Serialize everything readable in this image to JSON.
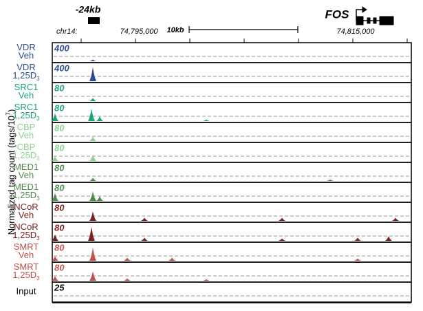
{
  "header": {
    "enhancer": "-24kb",
    "gene": "FOS",
    "chrom": "chr14:",
    "coord_left": "74,795,000",
    "scale_bar": "10kb",
    "coord_right": "74,815,000"
  },
  "y_label": {
    "prefix": "Normalized tag count (tags/10",
    "sup": "7",
    "suffix": ")"
  },
  "tracks": [
    {
      "factor": "VDR",
      "condition": "Veh",
      "scale": "400",
      "color": "#2d4b8e"
    },
    {
      "factor": "VDR",
      "condition": "1,25D",
      "sub": "3",
      "scale": "400",
      "color": "#2d4b8e"
    },
    {
      "factor": "SRC1",
      "condition": "Veh",
      "scale": "80",
      "color": "#1ba37a"
    },
    {
      "factor": "SRC1",
      "condition": "1,25D",
      "sub": "3",
      "scale": "80",
      "color": "#1ba37a"
    },
    {
      "factor": "CBP",
      "condition": "Veh",
      "scale": "80",
      "color": "#8fd08f"
    },
    {
      "factor": "CBP",
      "condition": "1,25D",
      "sub": "3",
      "scale": "80",
      "color": "#8fd08f"
    },
    {
      "factor": "MED1",
      "condition": "Veh",
      "scale": "80",
      "color": "#4f8a4f"
    },
    {
      "factor": "MED1",
      "condition": "1,25D",
      "sub": "3",
      "scale": "80",
      "color": "#4f8a4f"
    },
    {
      "factor": "NCoR",
      "condition": "Veh",
      "scale": "80",
      "color": "#7a2020"
    },
    {
      "factor": "NCoR",
      "condition": "1,25D",
      "sub": "3",
      "scale": "80",
      "color": "#7a2020"
    },
    {
      "factor": "SMRT",
      "condition": "Veh",
      "scale": "80",
      "color": "#c0504d"
    },
    {
      "factor": "SMRT",
      "condition": "1,25D",
      "sub": "3",
      "scale": "80",
      "color": "#c0504d"
    },
    {
      "factor": "Input",
      "scale": "25",
      "color": "#000000"
    }
  ]
}
